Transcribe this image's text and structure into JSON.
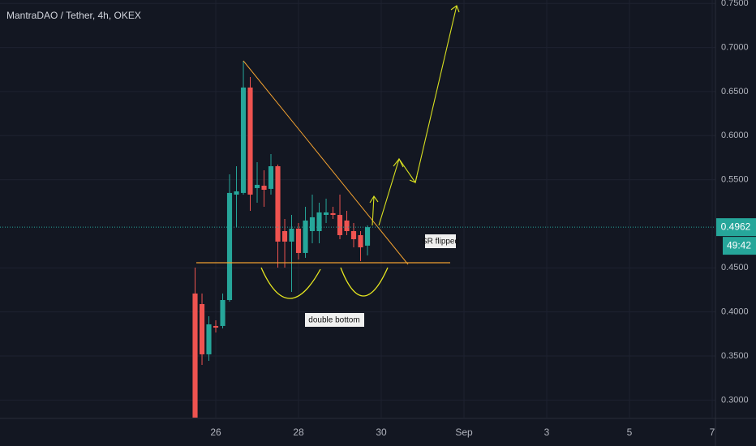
{
  "chart_data": {
    "type": "candlestick",
    "title": "MantraDAO / Tether, 4h, OKEX",
    "x": [
      25.5,
      25.667,
      25.833,
      26.0,
      26.167,
      26.333,
      26.5,
      26.667,
      26.833,
      27.0,
      27.167,
      27.333,
      27.5,
      27.667,
      27.833,
      28.0,
      28.167,
      28.333,
      28.5,
      28.667,
      28.833,
      29.0,
      29.167,
      29.333,
      29.5,
      29.667
    ],
    "open": [
      0.4209,
      0.4089,
      0.3519,
      0.3841,
      0.3841,
      0.4135,
      0.5331,
      0.535,
      0.6546,
      0.5405,
      0.5432,
      0.5396,
      0.5653,
      0.4917,
      0.4798,
      0.4945,
      0.4669,
      0.4917,
      0.4917,
      0.5101,
      0.512,
      0.5101,
      0.5037,
      0.4917,
      0.4871,
      0.4752
    ],
    "high": [
      0.4503,
      0.4209,
      0.3951,
      0.3905,
      0.4209,
      0.5561,
      0.5653,
      0.6849,
      0.6665,
      0.5699,
      0.5607,
      0.5791,
      0.5672,
      0.5055,
      0.5101,
      0.5009,
      0.5193,
      0.5331,
      0.5239,
      0.5285,
      0.5193,
      0.5331,
      0.5147,
      0.5009,
      0.4917,
      0.4982
    ],
    "low": [
      0.2801,
      0.3399,
      0.3445,
      0.3767,
      0.3813,
      0.4117,
      0.4963,
      0.5331,
      0.5147,
      0.5239,
      0.5193,
      0.5331,
      0.4503,
      0.4503,
      0.4227,
      0.4595,
      0.4614,
      0.4779,
      0.4779,
      0.5009,
      0.5055,
      0.4825,
      0.4871,
      0.4733,
      0.4577,
      0.4641
    ],
    "close": [
      0.2801,
      0.3519,
      0.3859,
      0.3822,
      0.4135,
      0.535,
      0.5368,
      0.6546,
      0.5331,
      0.5442,
      0.5386,
      0.5653,
      0.4798,
      0.4798,
      0.4945,
      0.4669,
      0.5037,
      0.5074,
      0.5129,
      0.5129,
      0.5101,
      0.4871,
      0.4917,
      0.4825,
      0.4733,
      0.4962
    ],
    "up_color": "#26a69a",
    "down_color": "#ef5350",
    "xlim": [
      20.784,
      38.078
    ],
    "xticks": [
      26,
      28,
      30,
      {
        "value": 32,
        "label": "Sep"
      },
      {
        "value": 34,
        "label": "3"
      },
      {
        "value": 36,
        "label": "5"
      },
      {
        "value": 38,
        "label": "7"
      }
    ],
    "ylim": [
      0.2801,
      0.7539
    ],
    "yticks": [
      {
        "value": 0.75,
        "label": "0.7500"
      },
      {
        "value": 0.7,
        "label": "0.7000"
      },
      {
        "value": 0.65,
        "label": "0.6500"
      },
      {
        "value": 0.6,
        "label": "0.6000"
      },
      {
        "value": 0.55,
        "label": "0.5500"
      },
      {
        "value": 0.45,
        "label": "0.4500"
      },
      {
        "value": 0.4,
        "label": "0.4000"
      },
      {
        "value": 0.35,
        "label": "0.3500"
      },
      {
        "value": 0.3,
        "label": "0.3000"
      }
    ],
    "grid": true,
    "last_price": 0.4962,
    "countdown": "49:42",
    "annotations": [
      "SR flipped",
      "double bottom"
    ]
  }
}
